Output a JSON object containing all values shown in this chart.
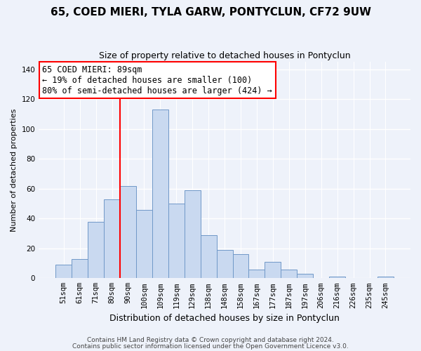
{
  "title": "65, COED MIERI, TYLA GARW, PONTYCLUN, CF72 9UW",
  "subtitle": "Size of property relative to detached houses in Pontyclun",
  "xlabel": "Distribution of detached houses by size in Pontyclun",
  "ylabel": "Number of detached properties",
  "bar_labels": [
    "51sqm",
    "61sqm",
    "71sqm",
    "80sqm",
    "90sqm",
    "100sqm",
    "109sqm",
    "119sqm",
    "129sqm",
    "138sqm",
    "148sqm",
    "158sqm",
    "167sqm",
    "177sqm",
    "187sqm",
    "197sqm",
    "206sqm",
    "216sqm",
    "226sqm",
    "235sqm",
    "245sqm"
  ],
  "bar_values": [
    9,
    13,
    38,
    53,
    62,
    46,
    113,
    50,
    59,
    29,
    19,
    16,
    6,
    11,
    6,
    3,
    0,
    1,
    0,
    0,
    1
  ],
  "bar_color": "#c9d9f0",
  "bar_edge_color": "#7098c8",
  "vline_index": 4,
  "annotation_line1": "65 COED MIERI: 89sqm",
  "annotation_line2": "← 19% of detached houses are smaller (100)",
  "annotation_line3": "80% of semi-detached houses are larger (424) →",
  "annotation_box_color": "white",
  "annotation_box_edge_color": "red",
  "vline_color": "red",
  "ylim": [
    0,
    145
  ],
  "yticks": [
    0,
    20,
    40,
    60,
    80,
    100,
    120,
    140
  ],
  "footer1": "Contains HM Land Registry data © Crown copyright and database right 2024.",
  "footer2": "Contains public sector information licensed under the Open Government Licence v3.0.",
  "background_color": "#eef2fa",
  "grid_color": "#ffffff",
  "title_fontsize": 11,
  "subtitle_fontsize": 9,
  "xlabel_fontsize": 9,
  "ylabel_fontsize": 8,
  "tick_fontsize": 7.5,
  "annotation_fontsize": 8.5,
  "footer_fontsize": 6.5
}
